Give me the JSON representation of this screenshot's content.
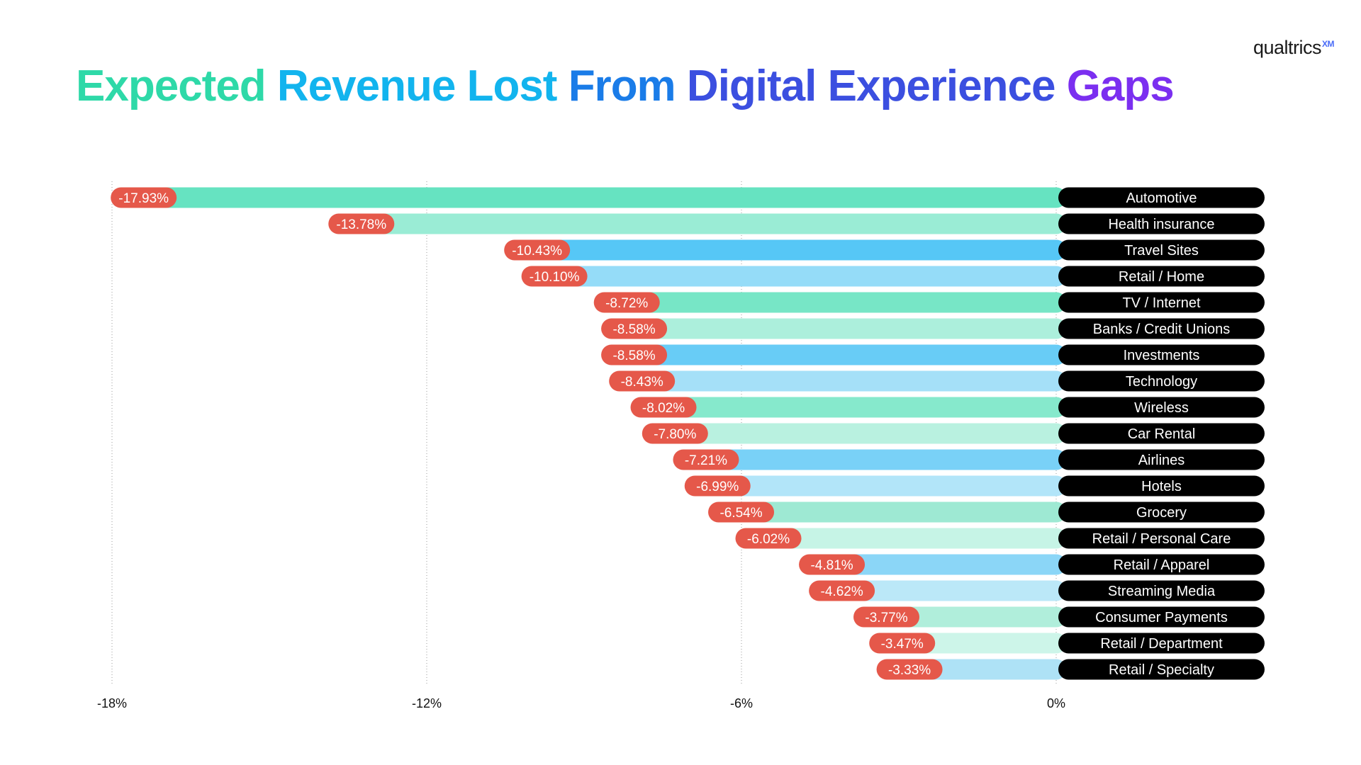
{
  "brand": {
    "name": "qualtrics",
    "superscript": "XM"
  },
  "chart_data": {
    "type": "bar",
    "orientation": "horizontal",
    "title": "Expected Revenue Lost From Digital Experience Gaps",
    "title_gradient": [
      "#2ed9a8",
      "#12b4ee",
      "#1a7ce8",
      "#3b4fe0",
      "#7b2ff0"
    ],
    "xlabel": "",
    "ylabel": "",
    "xlim": [
      -18,
      0
    ],
    "xticks": [
      {
        "value": -18,
        "label": "-18%"
      },
      {
        "value": -12,
        "label": "-12%"
      },
      {
        "value": -6,
        "label": "-6%"
      },
      {
        "value": 0,
        "label": "0%"
      }
    ],
    "grid": true,
    "categories": [
      "Automotive",
      "Health insurance",
      "Travel Sites",
      "Retail / Home",
      "TV / Internet",
      "Banks / Credit Unions",
      "Investments",
      "Technology",
      "Wireless",
      "Car Rental",
      "Airlines",
      "Hotels",
      "Grocery",
      "Retail / Personal Care",
      "Retail / Apparel",
      "Streaming Media",
      "Consumer Payments",
      "Retail / Department",
      "Retail / Specialty"
    ],
    "values": [
      -17.93,
      -13.78,
      -10.43,
      -10.1,
      -8.72,
      -8.58,
      -8.58,
      -8.43,
      -8.02,
      -7.8,
      -7.21,
      -6.99,
      -6.54,
      -6.02,
      -4.81,
      -4.62,
      -3.77,
      -3.47,
      -3.33
    ],
    "value_labels": [
      "-17.93%",
      "-13.78%",
      "-10.43%",
      "-10.10%",
      "-8.72%",
      "-8.58%",
      "-8.58%",
      "-8.43%",
      "-8.02%",
      "-7.80%",
      "-7.21%",
      "-6.99%",
      "-6.54%",
      "-6.02%",
      "-4.81%",
      "-4.62%",
      "-3.77%",
      "-3.47%",
      "-3.33%"
    ],
    "bar_colors": [
      "#66e3c1",
      "#9aecd5",
      "#56c7f6",
      "#95dcf8",
      "#77e6c6",
      "#acefdc",
      "#68ccf6",
      "#a5e0f8",
      "#86e9cc",
      "#b9f1e0",
      "#79d1f7",
      "#b2e5f9",
      "#9ee9d3",
      "#c6f4e6",
      "#8bd6f7",
      "#bbe8f8",
      "#b0eedb",
      "#cdf5e9",
      "#aee2f6"
    ],
    "value_badge_color": "#e5584a",
    "category_badge_color": "#000000"
  }
}
